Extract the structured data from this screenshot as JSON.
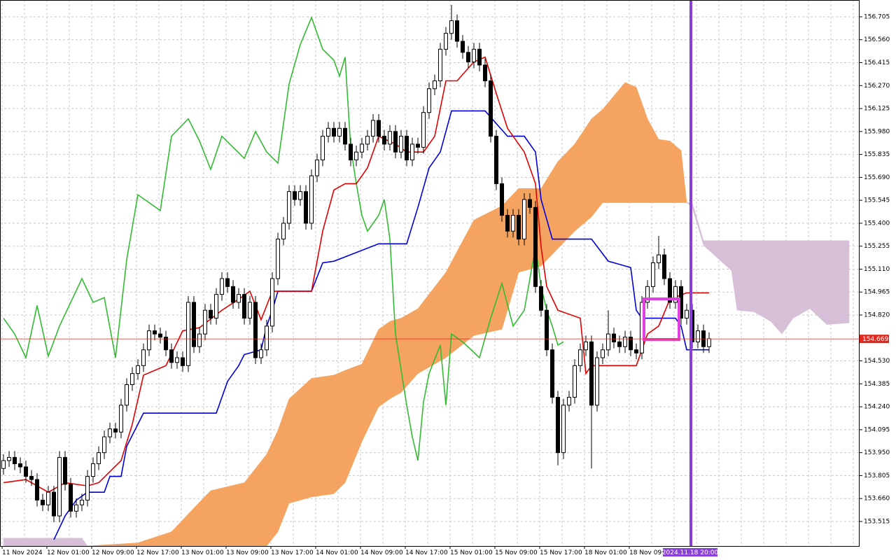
{
  "chart_data": {
    "type": "candlestick",
    "ylim": [
      153.36,
      156.811
    ],
    "yticks": [
      156.705,
      {
        "value": 156.56,
        "label": "156.560"
      },
      156.415,
      {
        "value": 156.27,
        "label": "156.270"
      },
      156.125,
      {
        "value": 155.98,
        "label": "155.980"
      },
      155.835,
      {
        "value": 155.69,
        "label": "155.690"
      },
      155.545,
      {
        "value": 155.4,
        "label": "155.400"
      },
      155.255,
      {
        "value": 155.11,
        "label": "155.110"
      },
      154.965,
      {
        "value": 154.82,
        "label": "154.820"
      },
      {
        "value": 154.53,
        "label": "154.530"
      },
      154.385,
      {
        "value": 154.24,
        "label": "154.240"
      },
      154.095,
      {
        "value": 153.95,
        "label": "153.950"
      },
      153.805,
      {
        "value": 153.66,
        "label": "153.660"
      },
      153.515
    ],
    "xticks": [
      "11 Nov 2024",
      "12 Nov 01:00",
      "12 Nov 09:00",
      "12 Nov 17:00",
      "13 Nov 01:00",
      "13 Nov 09:00",
      "13 Nov 17:00",
      "14 Nov 01:00",
      "14 Nov 09:00",
      "14 Nov 17:00",
      "15 Nov 01:00",
      "15 Nov 09:00",
      "15 Nov 17:00",
      "18 Nov 01:00",
      "18 Nov 09:00"
    ],
    "cursor_label": "2024.11.18 20:00",
    "current_price": 154.669,
    "current_price_color": "#e0281e",
    "grid": true,
    "open": [
      153.85,
      153.9,
      153.92,
      153.88,
      153.86,
      153.8,
      153.78,
      153.65,
      153.62,
      153.7,
      153.55,
      153.92,
      153.75,
      153.58,
      153.62,
      153.65,
      153.8,
      153.88,
      153.95,
      154.05,
      154.1,
      154.08,
      154.25,
      154.38,
      154.45,
      154.5,
      154.6,
      154.72,
      154.7,
      154.68,
      154.6,
      154.52,
      154.55,
      154.5,
      154.9,
      154.62,
      154.7,
      154.85,
      154.8,
      154.95,
      155.05,
      155.0,
      154.9,
      154.95,
      154.8,
      154.9,
      154.55,
      154.6,
      154.75,
      155.05,
      155.3,
      155.4,
      155.6,
      155.55,
      155.6,
      155.4,
      155.7,
      155.8,
      155.95,
      156.0,
      155.95,
      156.0,
      155.9,
      155.8,
      155.85,
      155.9,
      155.95,
      156.05,
      155.95,
      155.9,
      155.98,
      155.85,
      155.95,
      155.8,
      155.9,
      155.88,
      156.1,
      156.25,
      156.3,
      156.5,
      156.6,
      156.68,
      156.55,
      156.48,
      156.42,
      156.5,
      156.4,
      156.3,
      155.95,
      155.65,
      155.45,
      155.35,
      155.45,
      155.3,
      155.55,
      155.5,
      155.0,
      154.85,
      154.6,
      154.3,
      153.95,
      154.25,
      154.3,
      154.5,
      154.6,
      154.65,
      154.25,
      154.55,
      154.6,
      154.7,
      154.65,
      154.62,
      154.68,
      154.6,
      154.58,
      154.9,
      155.0,
      155.15,
      155.2,
      155.05,
      154.9,
      155.0,
      154.8,
      154.85,
      154.65,
      154.72,
      154.62
    ],
    "high": [
      153.94,
      153.96,
      153.96,
      153.92,
      153.9,
      153.84,
      153.82,
      153.69,
      153.74,
      153.74,
      153.96,
      153.96,
      153.79,
      153.66,
      153.69,
      153.84,
      153.92,
      153.99,
      154.09,
      154.14,
      154.14,
      154.29,
      154.42,
      154.49,
      154.54,
      154.64,
      154.76,
      154.76,
      154.74,
      154.72,
      154.64,
      154.59,
      154.59,
      154.94,
      154.94,
      154.74,
      154.89,
      154.89,
      154.99,
      155.09,
      155.09,
      155.04,
      154.99,
      154.99,
      154.94,
      154.94,
      154.64,
      154.79,
      155.09,
      155.34,
      155.44,
      155.64,
      155.64,
      155.64,
      155.64,
      155.74,
      155.84,
      155.99,
      156.04,
      156.04,
      156.04,
      156.04,
      155.94,
      155.89,
      155.94,
      155.99,
      156.09,
      156.09,
      155.99,
      156.02,
      156.02,
      155.99,
      155.99,
      155.94,
      155.94,
      156.14,
      156.29,
      156.34,
      156.54,
      156.64,
      156.78,
      156.72,
      156.59,
      156.52,
      156.54,
      156.54,
      156.44,
      156.34,
      155.99,
      155.69,
      155.49,
      155.49,
      155.49,
      155.59,
      155.59,
      155.54,
      155.04,
      154.89,
      154.64,
      154.34,
      154.29,
      154.34,
      154.54,
      154.64,
      154.69,
      154.69,
      154.59,
      154.64,
      154.85,
      154.74,
      154.69,
      154.72,
      154.72,
      154.64,
      154.94,
      155.04,
      155.19,
      155.32,
      155.24,
      155.09,
      155.04,
      155.04,
      154.89,
      154.89,
      154.76,
      154.76,
      154.71
    ],
    "low": [
      153.81,
      153.86,
      153.84,
      153.82,
      153.76,
      153.74,
      153.61,
      153.58,
      153.58,
      153.51,
      153.51,
      153.71,
      153.54,
      153.54,
      153.58,
      153.61,
      153.76,
      153.84,
      153.91,
      154.01,
      154.04,
      154.04,
      154.21,
      154.34,
      154.41,
      154.46,
      154.56,
      154.66,
      154.64,
      154.56,
      154.48,
      154.48,
      154.46,
      154.46,
      154.58,
      154.58,
      154.66,
      154.76,
      154.76,
      154.91,
      154.96,
      154.86,
      154.86,
      154.76,
      154.76,
      154.51,
      154.51,
      154.56,
      154.71,
      155.01,
      155.26,
      155.36,
      155.51,
      155.51,
      155.36,
      155.36,
      155.66,
      155.76,
      155.91,
      155.91,
      155.91,
      155.86,
      155.76,
      155.76,
      155.81,
      155.86,
      155.91,
      155.91,
      155.86,
      155.86,
      155.81,
      155.81,
      155.76,
      155.76,
      155.84,
      155.84,
      156.06,
      156.21,
      156.26,
      156.46,
      156.56,
      156.51,
      156.44,
      156.38,
      156.38,
      156.36,
      156.26,
      155.91,
      155.61,
      155.41,
      155.31,
      155.31,
      155.26,
      155.26,
      155.46,
      154.96,
      154.81,
      154.56,
      154.26,
      153.87,
      153.91,
      154.21,
      154.26,
      154.46,
      154.56,
      153.85,
      154.21,
      154.51,
      154.56,
      154.61,
      154.58,
      154.58,
      154.56,
      154.54,
      154.54,
      154.86,
      154.96,
      155.11,
      155.01,
      154.86,
      154.86,
      154.76,
      154.76,
      154.61,
      154.61,
      154.58,
      154.58
    ],
    "close": [
      153.9,
      153.92,
      153.88,
      153.86,
      153.8,
      153.78,
      153.65,
      153.62,
      153.7,
      153.55,
      153.92,
      153.75,
      153.58,
      153.62,
      153.65,
      153.8,
      153.88,
      153.95,
      154.05,
      154.1,
      154.08,
      154.25,
      154.38,
      154.45,
      154.5,
      154.6,
      154.72,
      154.7,
      154.68,
      154.6,
      154.52,
      154.55,
      154.5,
      154.9,
      154.62,
      154.7,
      154.85,
      154.8,
      154.95,
      155.05,
      155.0,
      154.9,
      154.95,
      154.8,
      154.9,
      154.55,
      154.6,
      154.75,
      155.05,
      155.3,
      155.4,
      155.6,
      155.55,
      155.6,
      155.4,
      155.7,
      155.8,
      155.95,
      156.0,
      155.95,
      156.0,
      155.9,
      155.8,
      155.85,
      155.9,
      155.95,
      156.05,
      155.95,
      155.9,
      155.98,
      155.85,
      155.95,
      155.8,
      155.9,
      155.88,
      156.1,
      156.25,
      156.3,
      156.5,
      156.6,
      156.68,
      156.55,
      156.48,
      156.42,
      156.5,
      156.4,
      156.3,
      155.95,
      155.65,
      155.45,
      155.35,
      155.45,
      155.3,
      155.55,
      155.5,
      155.0,
      154.85,
      154.6,
      154.3,
      153.95,
      154.25,
      154.3,
      154.5,
      154.6,
      154.65,
      154.25,
      154.55,
      154.6,
      154.7,
      154.65,
      154.62,
      154.68,
      154.6,
      154.58,
      154.9,
      155.0,
      155.15,
      155.2,
      155.05,
      154.9,
      155.0,
      154.8,
      154.85,
      154.65,
      154.72,
      154.62,
      154.67
    ],
    "cloud": {
      "colors": [
        "#f4a460",
        "#d8bfd8"
      ],
      "x": [
        0,
        14,
        15,
        24,
        30,
        34,
        37,
        43,
        47,
        49,
        51,
        55,
        59,
        61,
        64,
        67,
        69,
        71,
        74,
        79,
        84,
        89,
        92,
        96,
        99,
        102,
        105,
        107,
        111,
        113,
        115,
        117,
        119,
        121,
        122,
        123,
        125,
        130,
        131,
        134,
        137,
        139,
        141,
        144,
        147,
        151
      ],
      "span_a": [
        153.36,
        153.36,
        153.36,
        153.38,
        153.45,
        153.6,
        153.71,
        153.76,
        153.94,
        154.09,
        154.29,
        154.42,
        154.44,
        154.47,
        154.51,
        154.73,
        154.78,
        154.8,
        154.86,
        155.09,
        155.42,
        155.51,
        155.62,
        155.62,
        155.79,
        155.9,
        156.06,
        156.12,
        156.29,
        156.26,
        156.06,
        155.93,
        155.92,
        155.86,
        155.53,
        155.5,
        155.26,
        155.1,
        154.85,
        154.84,
        154.78,
        154.7,
        154.8,
        154.86,
        154.76,
        154.77
      ],
      "span_b": [
        153.41,
        153.41,
        153.36,
        153.36,
        153.36,
        153.36,
        153.36,
        153.36,
        153.36,
        153.45,
        153.63,
        153.67,
        153.69,
        153.76,
        154.02,
        154.24,
        154.29,
        154.33,
        154.45,
        154.55,
        154.69,
        154.73,
        155.09,
        155.13,
        155.24,
        155.35,
        155.44,
        155.53,
        155.53,
        155.53,
        155.53,
        155.53,
        155.53,
        155.53,
        155.53,
        155.53,
        155.29,
        155.29,
        155.29,
        155.29,
        155.29,
        155.29,
        155.29,
        155.29,
        155.29,
        155.29
      ]
    },
    "lines": [
      {
        "color": "#33bb33",
        "x": [
          0,
          2,
          4,
          6,
          8,
          10,
          12,
          14,
          16,
          18,
          20,
          22,
          24,
          26,
          28,
          30,
          33,
          35,
          37,
          39,
          41,
          43,
          45,
          47,
          49,
          51,
          53,
          55,
          57,
          59,
          60,
          61,
          62,
          63,
          64,
          65,
          67,
          68,
          69,
          70,
          72,
          73,
          74,
          75,
          76,
          78,
          79,
          80,
          82,
          85,
          87,
          89,
          91,
          93,
          95,
          96,
          97,
          98,
          99,
          100
        ],
        "values": [
          154.8,
          154.7,
          154.55,
          154.88,
          154.56,
          154.75,
          154.9,
          155.05,
          154.9,
          154.93,
          154.55,
          155.17,
          155.58,
          155.53,
          155.48,
          155.95,
          156.06,
          155.92,
          155.74,
          155.95,
          155.88,
          155.81,
          155.98,
          155.85,
          155.78,
          156.28,
          156.53,
          156.7,
          156.5,
          156.43,
          156.33,
          156.45,
          155.88,
          155.65,
          155.45,
          155.35,
          155.45,
          155.55,
          155.3,
          154.7,
          154.25,
          154.05,
          153.9,
          154.27,
          154.45,
          154.63,
          154.25,
          154.7,
          154.65,
          154.55,
          154.8,
          155.02,
          154.75,
          154.85,
          155.25,
          155.0,
          154.85,
          154.75,
          154.63,
          154.65
        ]
      },
      {
        "color": "#0000dd",
        "x": [
          9,
          11,
          13,
          15,
          18,
          19,
          21,
          22,
          25,
          38,
          40,
          42,
          43,
          46,
          47,
          48,
          49,
          55,
          57,
          59,
          67,
          72,
          74,
          76,
          78,
          80,
          86,
          90,
          93,
          95,
          96,
          98,
          105,
          108,
          112,
          113,
          114,
          120,
          121,
          122,
          126
        ],
        "values": [
          153.4,
          153.55,
          153.65,
          153.7,
          153.7,
          153.8,
          153.8,
          153.99,
          154.2,
          154.2,
          154.4,
          154.5,
          154.57,
          154.6,
          154.75,
          154.85,
          154.97,
          154.97,
          155.15,
          155.16,
          155.27,
          155.27,
          155.5,
          155.75,
          155.85,
          156.11,
          156.11,
          155.95,
          155.95,
          155.85,
          155.55,
          155.3,
          155.3,
          155.16,
          155.12,
          154.85,
          154.8,
          154.8,
          154.75,
          154.6,
          154.6
        ]
      },
      {
        "color": "#e00000",
        "x": [
          0,
          4,
          8,
          11,
          15,
          17,
          21,
          23,
          25,
          29,
          32,
          35,
          39,
          42,
          44,
          46,
          48,
          55,
          57,
          59,
          61,
          63,
          65,
          67,
          70,
          72,
          75,
          77,
          79,
          81,
          84,
          86,
          88,
          90,
          93,
          95,
          96,
          97,
          99,
          103,
          104,
          105,
          110,
          113,
          115,
          117,
          119,
          122,
          126
        ],
        "values": [
          153.76,
          153.78,
          153.7,
          153.76,
          153.74,
          153.76,
          153.9,
          154.13,
          154.44,
          154.5,
          154.72,
          154.74,
          154.85,
          154.92,
          154.97,
          154.79,
          154.97,
          154.97,
          155.35,
          155.61,
          155.65,
          155.65,
          155.75,
          155.95,
          155.9,
          155.85,
          155.85,
          155.95,
          156.3,
          156.3,
          156.42,
          156.45,
          156.22,
          156.0,
          155.85,
          155.65,
          155.25,
          155.0,
          154.85,
          154.8,
          154.45,
          154.5,
          154.5,
          154.5,
          154.7,
          154.75,
          154.92,
          154.96,
          154.96
        ]
      }
    ]
  }
}
